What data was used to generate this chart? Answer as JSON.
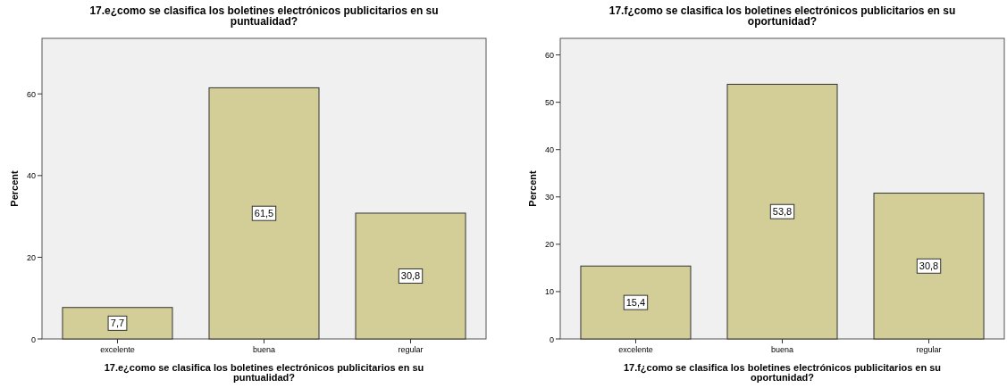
{
  "chart_data": [
    {
      "type": "bar",
      "title": "17.e¿como se clasifica los boletines electrónicos publicitarios en su puntualidad?",
      "xlabel": "17.e¿como se clasifica los boletines electrónicos publicitarios en su puntualidad?",
      "ylabel": "Percent",
      "categories": [
        "excelente",
        "buena",
        "regular"
      ],
      "values": [
        7.7,
        61.5,
        30.8
      ],
      "value_labels": [
        "7,7",
        "61,5",
        "30,8"
      ],
      "color": "#d3ce97",
      "ylim": [
        0,
        73.6
      ],
      "yticks": [
        0,
        20,
        40,
        60
      ],
      "grid": false
    },
    {
      "type": "bar",
      "title": "17.f¿como se clasifica los boletines electrónicos publicitarios en su oportunidad?",
      "xlabel": "17.f¿como se clasifica los boletines electrónicos publicitarios en su oportunidad?",
      "ylabel": "Percent",
      "categories": [
        "excelente",
        "buena",
        "regular"
      ],
      "values": [
        15.4,
        53.8,
        30.8
      ],
      "value_labels": [
        "15,4",
        "53,8",
        "30,8"
      ],
      "color": "#d3ce97",
      "ylim": [
        0,
        63.5
      ],
      "yticks": [
        0,
        10,
        20,
        30,
        40,
        50,
        60
      ],
      "grid": false
    }
  ]
}
